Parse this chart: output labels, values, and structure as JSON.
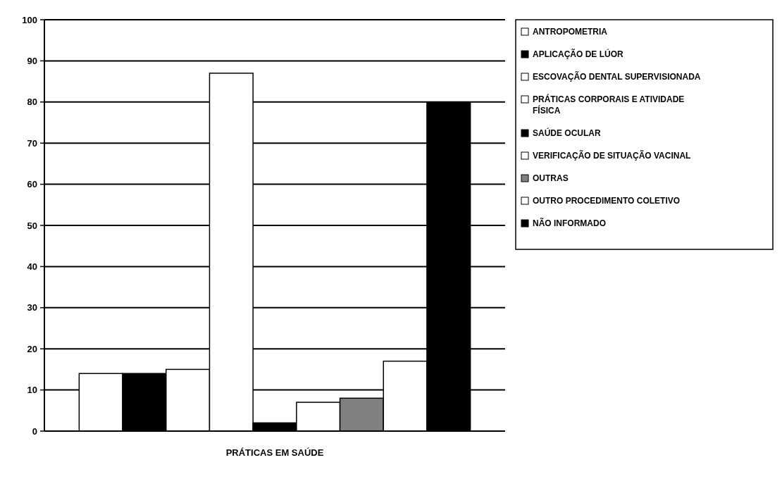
{
  "chart_data": {
    "type": "bar",
    "categories": [
      "PRÁTICAS EM SAÚDE"
    ],
    "series": [
      {
        "name": "ANTROPOMETRIA",
        "color": "#ffffff",
        "values": [
          14
        ]
      },
      {
        "name": "APLICAÇÃO DE LÚOR",
        "color": "#000000",
        "values": [
          14
        ]
      },
      {
        "name": "ESCOVAÇÃO DENTAL SUPERVISIONADA",
        "color": "#ffffff",
        "values": [
          15
        ]
      },
      {
        "name": "PRÁTICAS CORPORAIS E ATIVIDADE FÍSICA",
        "color": "#ffffff",
        "values": [
          87
        ]
      },
      {
        "name": "SAÚDE OCULAR",
        "color": "#000000",
        "values": [
          2
        ]
      },
      {
        "name": "VERIFICAÇÃO DE SITUAÇÃO VACINAL",
        "color": "#ffffff",
        "values": [
          7
        ]
      },
      {
        "name": "OUTRAS",
        "color": "#808080",
        "values": [
          8
        ]
      },
      {
        "name": "OUTRO PROCEDIMENTO COLETIVO",
        "color": "#ffffff",
        "values": [
          17
        ]
      },
      {
        "name": "NÃO INFORMADO",
        "color": "#000000",
        "values": [
          80
        ]
      }
    ],
    "ylim": [
      0,
      100
    ],
    "yticks": [
      0,
      10,
      20,
      30,
      40,
      50,
      60,
      70,
      80,
      90,
      100
    ],
    "grid": "y",
    "legend": "right"
  }
}
